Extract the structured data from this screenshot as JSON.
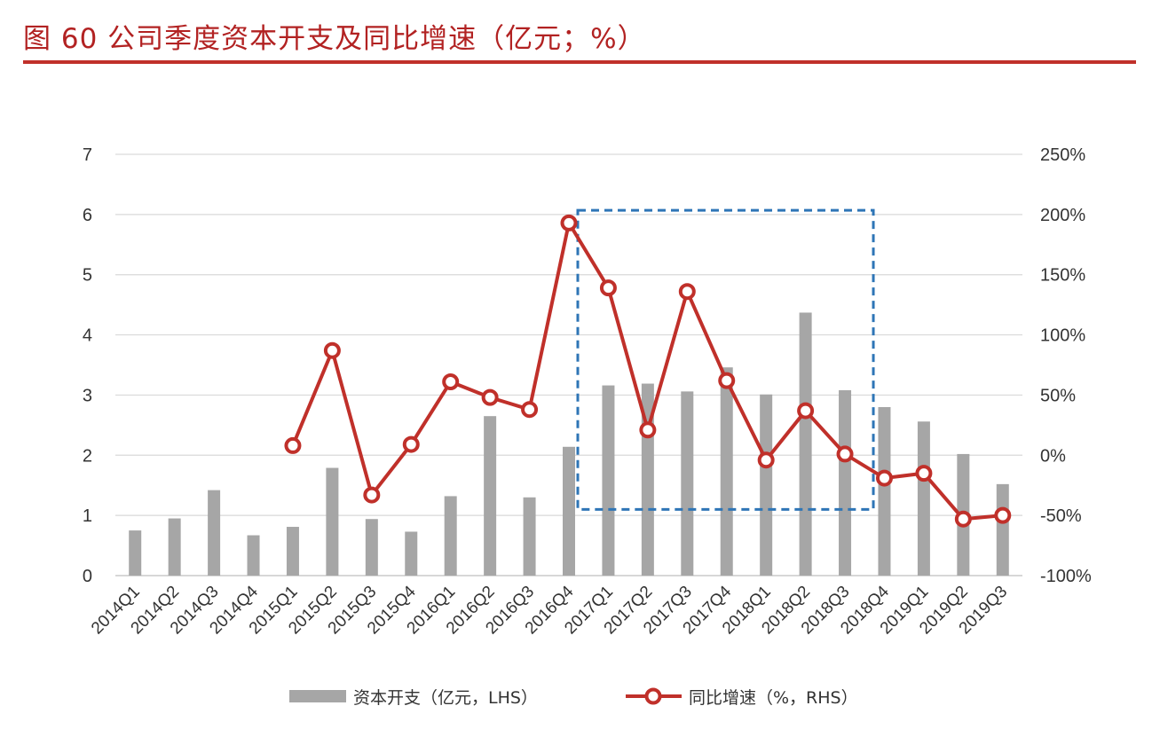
{
  "figure": {
    "title": "图 60 公司季度资本开支及同比增速（亿元；%）"
  },
  "colors": {
    "title": "#b22222",
    "bar": "#a6a6a6",
    "line": "#c0302a",
    "grid": "#d9d9d9",
    "highlight_box": "#2e75b6"
  },
  "chart_data": {
    "type": "bar",
    "categories": [
      "2014Q1",
      "2014Q2",
      "2014Q3",
      "2014Q4",
      "2015Q1",
      "2015Q2",
      "2015Q3",
      "2015Q4",
      "2016Q1",
      "2016Q2",
      "2016Q3",
      "2016Q4",
      "2017Q1",
      "2017Q2",
      "2017Q3",
      "2017Q4",
      "2018Q1",
      "2018Q2",
      "2018Q3",
      "2018Q4",
      "2019Q1",
      "2019Q2",
      "2019Q3"
    ],
    "series": [
      {
        "name": "资本开支（亿元，LHS）",
        "type": "bar",
        "axis": "left",
        "values": [
          0.75,
          0.95,
          1.42,
          0.67,
          0.81,
          1.79,
          0.94,
          0.73,
          1.32,
          2.65,
          1.3,
          2.14,
          3.16,
          3.19,
          3.06,
          3.46,
          3.01,
          4.37,
          3.08,
          2.8,
          2.56,
          2.02,
          1.52
        ]
      },
      {
        "name": "同比增速（%，RHS）",
        "type": "line",
        "axis": "right",
        "values": [
          null,
          null,
          null,
          null,
          8,
          87,
          -33,
          9,
          61,
          48,
          38,
          193,
          139,
          21,
          136,
          62,
          -4,
          37,
          1,
          -19,
          -15,
          -53,
          -50
        ]
      }
    ],
    "y_left": {
      "min": 0,
      "max": 7,
      "ticks": [
        "0",
        "1",
        "2",
        "3",
        "4",
        "5",
        "6",
        "7"
      ]
    },
    "y_right": {
      "min": -100,
      "max": 250,
      "ticks": [
        "-100%",
        "-50%",
        "0%",
        "50%",
        "100%",
        "150%",
        "200%",
        "250%"
      ]
    },
    "grid": true,
    "legend_position": "bottom",
    "annotation": {
      "type": "dashed-box",
      "x_from": "2016Q4",
      "x_to": "2018Q3",
      "y_left_from": 1.1,
      "y_left_to": 6.07
    }
  }
}
